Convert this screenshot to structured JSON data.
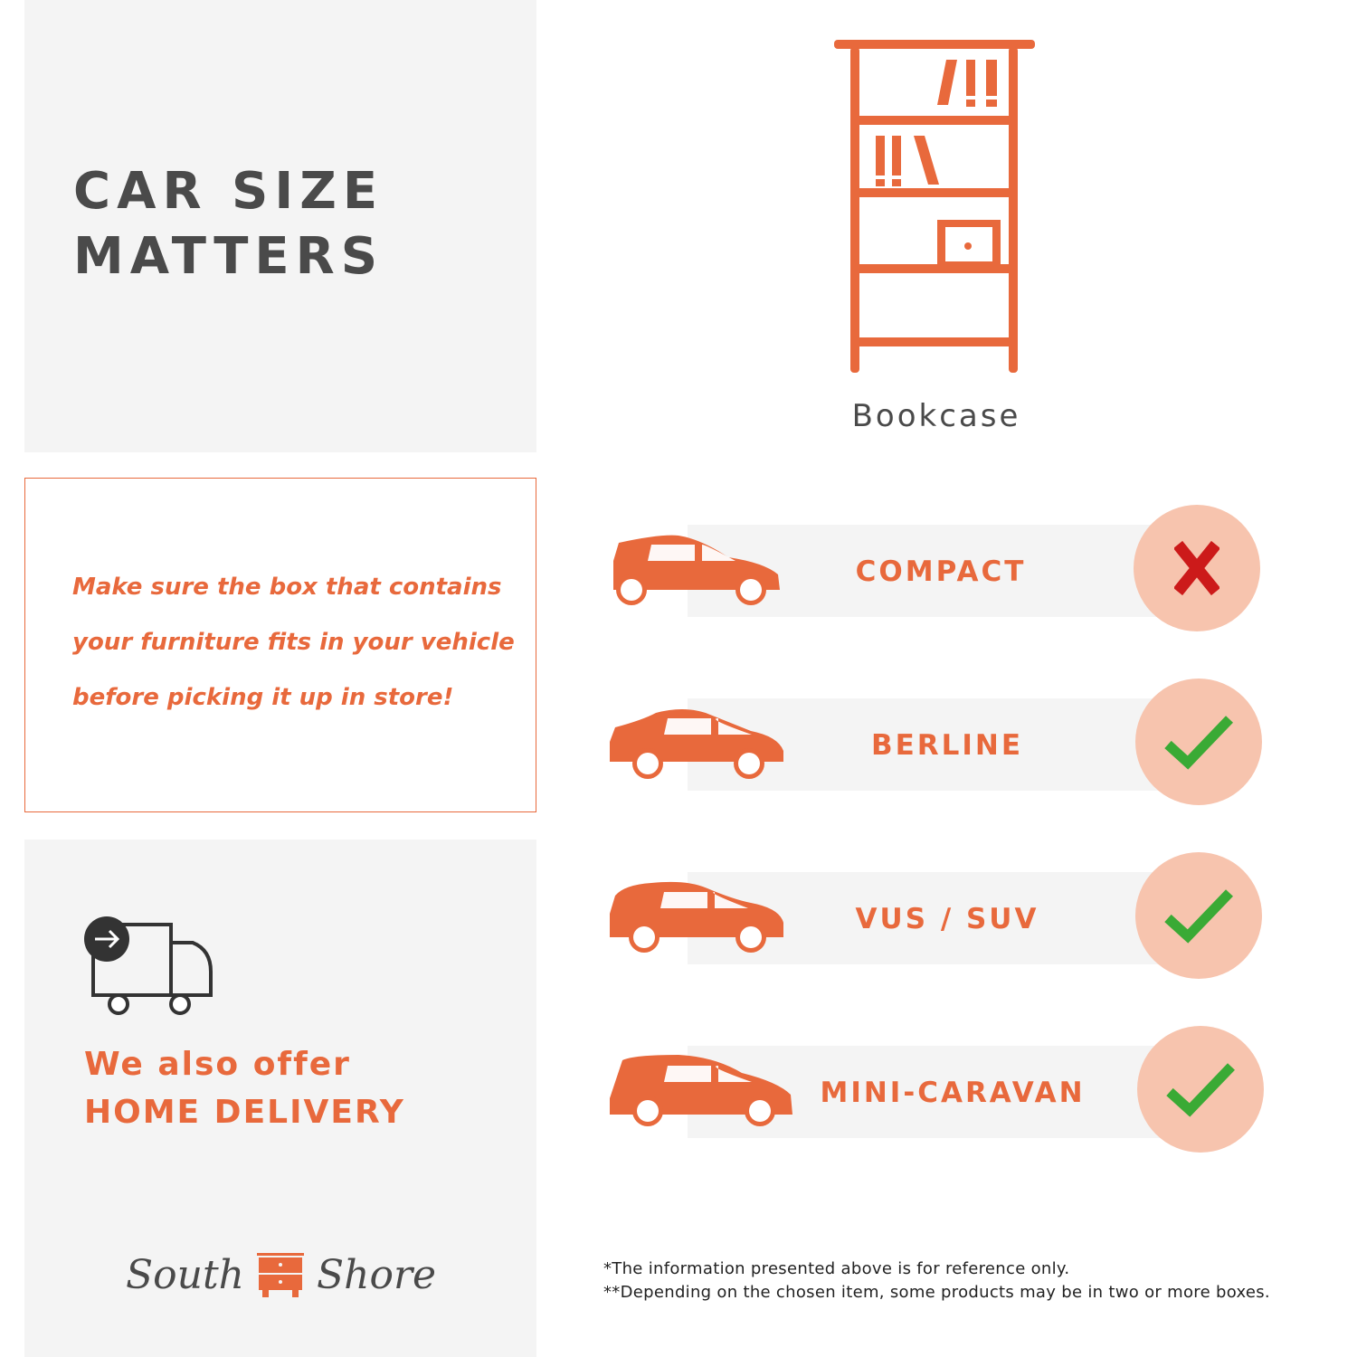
{
  "header": {
    "title_line1": "CAR SIZE",
    "title_line2": "MATTERS"
  },
  "message": {
    "lines": [
      "Make sure the box that contains",
      "your furniture fits in your vehicle",
      "before picking it up in store!"
    ]
  },
  "delivery": {
    "line1": "We also offer",
    "line2": "HOME DELIVERY",
    "icon": "delivery-truck-icon"
  },
  "brand": {
    "name_part1": "South",
    "name_part2": "Shore",
    "icon": "nightstand-icon"
  },
  "product": {
    "label": "Bookcase",
    "icon": "bookcase-icon"
  },
  "vehicles": [
    {
      "label": "COMPACT",
      "fits": false,
      "icon": "hatchback-car-icon"
    },
    {
      "label": "BERLINE",
      "fits": true,
      "icon": "sedan-car-icon"
    },
    {
      "label": "VUS / SUV",
      "fits": true,
      "icon": "suv-car-icon"
    },
    {
      "label": "MINI-CARAVAN",
      "fits": true,
      "icon": "minivan-icon"
    }
  ],
  "footnotes": [
    "*The information presented above is for reference only.",
    "**Depending on the chosen item, some products may be in two or more boxes."
  ],
  "colors": {
    "accent": "#e8693c",
    "text": "#4a4a4a",
    "panel": "#f4f4f4",
    "circle": "#f7c4ae",
    "check": "#3aaa35",
    "cross": "#cc1a1a"
  }
}
